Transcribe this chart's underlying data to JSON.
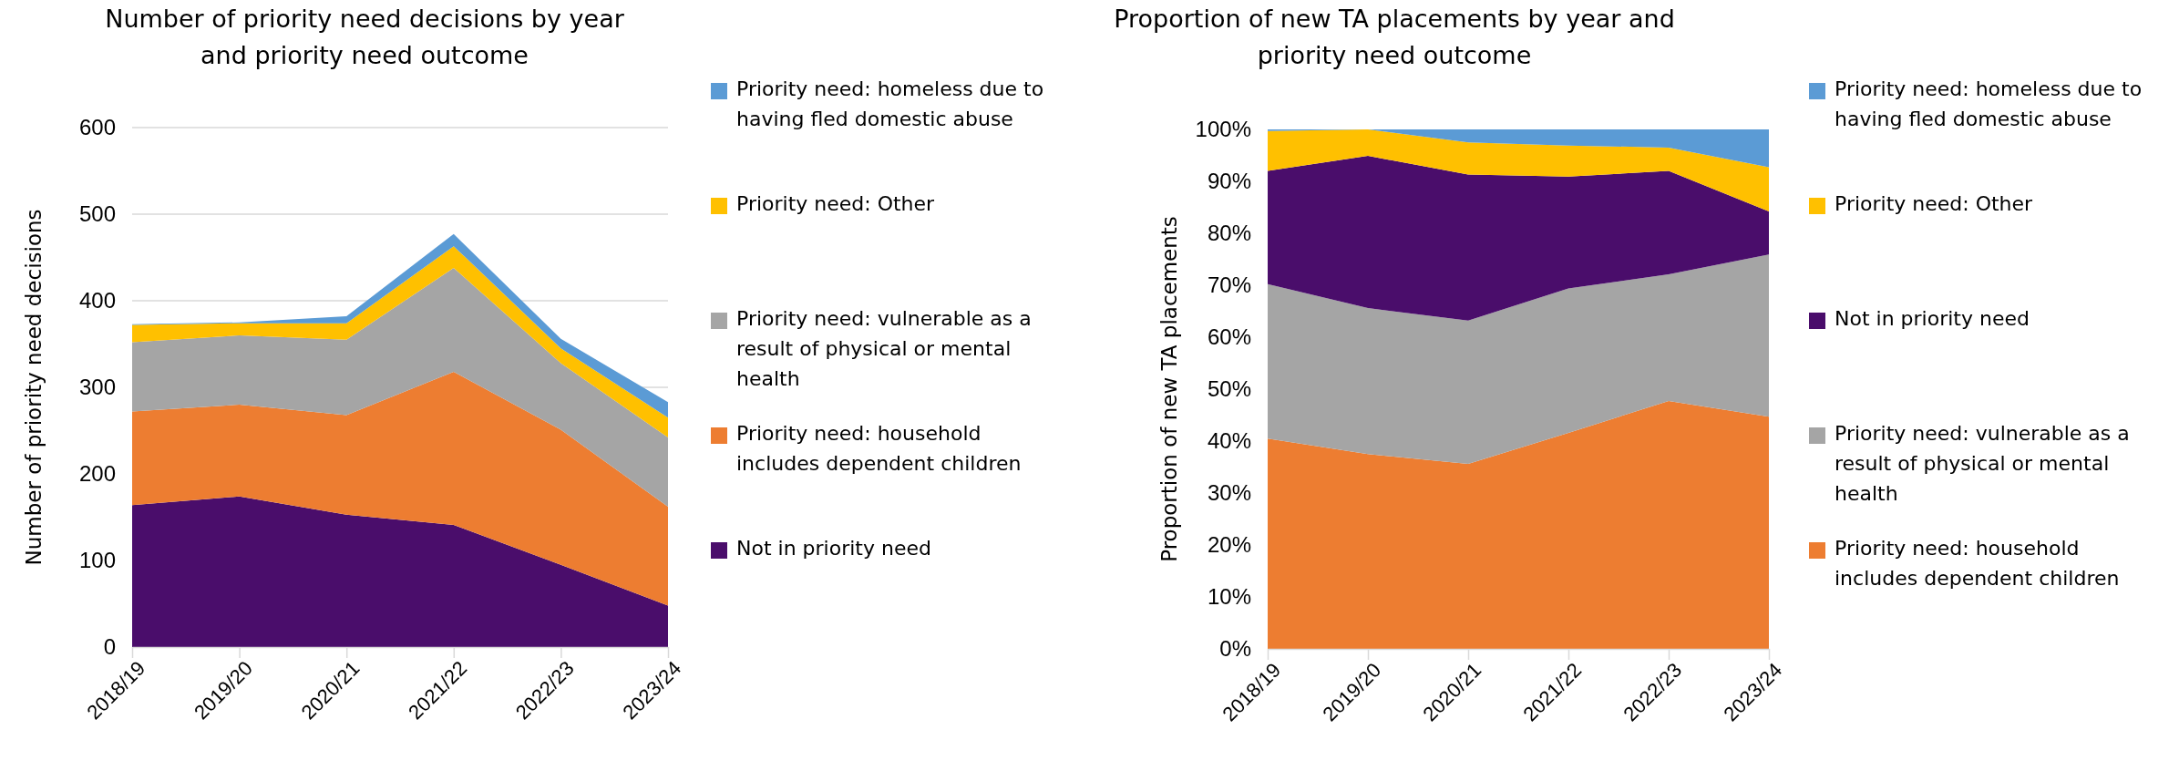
{
  "chart_data": [
    {
      "type": "area",
      "title": "Number of priority need decisions by year and priority need outcome",
      "ylabel": "Number of priority need decisions",
      "categories": [
        "2018/19",
        "2019/20",
        "2020/21",
        "2021/22",
        "2022/23",
        "2023/24"
      ],
      "stacked": true,
      "ylim": [
        0,
        600
      ],
      "yticks": [
        0,
        100,
        200,
        300,
        400,
        500,
        600
      ],
      "grid": "y",
      "legend": "right",
      "series": [
        {
          "name": "Not in priority need",
          "color": "#4a0d6b",
          "values": [
            164,
            174,
            153,
            141,
            95,
            48
          ]
        },
        {
          "name": "Priority need: household includes dependent children",
          "color": "#ed7d31",
          "values": [
            108,
            106,
            115,
            177,
            156,
            114
          ]
        },
        {
          "name": "Priority need: vulnerable as a result of physical or mental health",
          "color": "#a5a5a5",
          "values": [
            80,
            80,
            87,
            120,
            77,
            80
          ]
        },
        {
          "name": "Priority need: Other",
          "color": "#ffc000",
          "values": [
            20,
            14,
            19,
            25,
            17,
            23
          ]
        },
        {
          "name": "Priority need: homeless due to having fled domestic abuse",
          "color": "#5b9bd5",
          "values": [
            1,
            1,
            8,
            14,
            11,
            18
          ]
        }
      ]
    },
    {
      "type": "area",
      "title": "Proportion of new TA placements by year and priority need outcome",
      "ylabel": "Proportion of new TA placements",
      "categories": [
        "2018/19",
        "2019/20",
        "2020/21",
        "2021/22",
        "2022/23",
        "2023/24"
      ],
      "stacked": true,
      "ylim": [
        0,
        100
      ],
      "yticks": [
        {
          "value": 0,
          "label": "0%"
        },
        {
          "value": 10,
          "label": "10%"
        },
        {
          "value": 20,
          "label": "20%"
        },
        {
          "value": 30,
          "label": "30%"
        },
        {
          "value": 40,
          "label": "40%"
        },
        {
          "value": 50,
          "label": "50%"
        },
        {
          "value": 60,
          "label": "60%"
        },
        {
          "value": 70,
          "label": "70%"
        },
        {
          "value": 80,
          "label": "80%"
        },
        {
          "value": 90,
          "label": "90%"
        },
        {
          "value": 100,
          "label": "100%"
        }
      ],
      "legend": "right",
      "series": [
        {
          "name": "Priority need: household includes dependent children",
          "color": "#ed7d31",
          "values": [
            40.5,
            37.5,
            35.6,
            41.6,
            47.7,
            44.7
          ]
        },
        {
          "name": "Priority need: vulnerable as a result of physical or mental health",
          "color": "#a5a5a5",
          "values": [
            29.7,
            28.1,
            27.6,
            27.8,
            24.4,
            31.2
          ]
        },
        {
          "name": "Not in priority need",
          "color": "#4a0d6b",
          "values": [
            21.8,
            29.3,
            28.1,
            21.5,
            19.9,
            8.3
          ]
        },
        {
          "name": "Priority need: Other",
          "color": "#ffc000",
          "values": [
            7.7,
            5.1,
            6.2,
            6.0,
            4.5,
            8.5
          ]
        },
        {
          "name": "Priority need: homeless due to having fled domestic abuse",
          "color": "#5b9bd5",
          "values": [
            0.3,
            0,
            2.5,
            3.1,
            3.5,
            7.3
          ]
        }
      ]
    }
  ]
}
